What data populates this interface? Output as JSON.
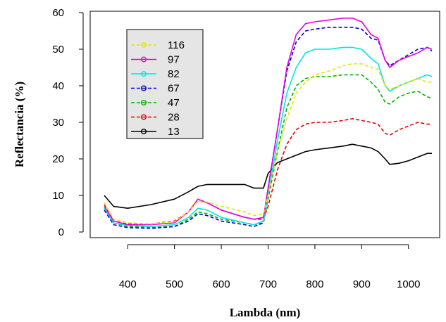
{
  "chart_data": {
    "type": "line",
    "title": "",
    "xlabel": "Lambda (nm)",
    "ylabel": "Reflectancia (%)",
    "xlim": [
      350,
      1050
    ],
    "ylim": [
      0,
      60
    ],
    "xticks": [
      400,
      500,
      600,
      700,
      800,
      900,
      1000
    ],
    "yticks": [
      0,
      10,
      20,
      30,
      40,
      50,
      60
    ],
    "grid": false,
    "legend_position": "top-left",
    "x": [
      350,
      370,
      400,
      450,
      500,
      530,
      550,
      570,
      600,
      650,
      670,
      690,
      700,
      720,
      740,
      760,
      780,
      800,
      830,
      860,
      880,
      900,
      920,
      935,
      950,
      960,
      980,
      1000,
      1020,
      1040,
      1050
    ],
    "series": [
      {
        "name": "116",
        "color": "#e6e600",
        "dash": "5,3",
        "values": [
          8.0,
          3.5,
          2.5,
          2.2,
          2.8,
          5.5,
          8.5,
          8.2,
          7.0,
          5.5,
          4.5,
          5.0,
          10.0,
          22.0,
          31.0,
          38.0,
          41.0,
          43.0,
          44.0,
          45.5,
          46.0,
          46.0,
          45.0,
          44.5,
          40.0,
          39.0,
          40.0,
          41.0,
          42.0,
          41.0,
          41.0
        ]
      },
      {
        "name": "97",
        "color": "#e600e6",
        "dash": "none",
        "values": [
          7.0,
          3.0,
          2.0,
          2.0,
          2.5,
          5.5,
          9.0,
          8.0,
          6.0,
          4.0,
          3.5,
          4.0,
          12.0,
          28.0,
          45.0,
          54.0,
          57.0,
          57.5,
          58.0,
          58.5,
          58.5,
          57.5,
          54.0,
          53.0,
          47.0,
          45.0,
          47.0,
          48.0,
          49.0,
          50.5,
          50.0
        ]
      },
      {
        "name": "82",
        "color": "#00e6e6",
        "dash": "none",
        "values": [
          6.5,
          2.5,
          1.8,
          1.5,
          2.0,
          4.0,
          6.5,
          6.0,
          4.0,
          2.5,
          2.0,
          3.0,
          10.0,
          25.0,
          38.0,
          45.0,
          49.0,
          50.0,
          50.0,
          50.5,
          50.5,
          50.0,
          47.5,
          46.0,
          40.0,
          38.5,
          40.0,
          41.0,
          42.0,
          43.0,
          42.5
        ]
      },
      {
        "name": "67",
        "color": "#0000cc",
        "dash": "5,3",
        "values": [
          6.0,
          2.0,
          1.2,
          1.0,
          1.5,
          3.0,
          5.0,
          4.5,
          3.0,
          2.0,
          1.5,
          2.5,
          12.0,
          28.0,
          44.0,
          52.0,
          55.0,
          55.5,
          56.0,
          56.0,
          56.0,
          55.5,
          53.0,
          52.5,
          47.0,
          45.5,
          47.0,
          48.5,
          50.0,
          50.5,
          49.5
        ]
      },
      {
        "name": "47",
        "color": "#00b300",
        "dash": "5,3",
        "values": [
          6.5,
          2.5,
          1.5,
          1.2,
          1.5,
          3.5,
          5.5,
          5.0,
          3.5,
          2.5,
          2.0,
          2.5,
          9.0,
          22.0,
          34.0,
          40.0,
          42.0,
          42.5,
          42.5,
          43.0,
          43.0,
          43.0,
          41.0,
          39.0,
          35.5,
          35.0,
          37.0,
          38.0,
          38.5,
          37.0,
          36.5
        ]
      },
      {
        "name": "28",
        "color": "#e60000",
        "dash": "5,3",
        "values": [
          7.5,
          3.0,
          2.2,
          2.2,
          3.0,
          5.5,
          8.5,
          8.0,
          6.0,
          4.0,
          3.5,
          3.5,
          7.0,
          17.0,
          24.0,
          28.0,
          29.5,
          30.0,
          30.0,
          30.5,
          31.0,
          30.5,
          30.0,
          29.5,
          27.0,
          26.5,
          28.0,
          29.0,
          30.0,
          29.5,
          29.5
        ]
      },
      {
        "name": "13",
        "color": "#000000",
        "dash": "none",
        "values": [
          10.0,
          7.0,
          6.5,
          7.5,
          9.0,
          11.0,
          12.5,
          13.0,
          13.0,
          13.0,
          12.0,
          12.0,
          16.0,
          19.0,
          20.0,
          21.0,
          22.0,
          22.5,
          23.0,
          23.5,
          24.0,
          23.5,
          23.0,
          22.0,
          20.0,
          18.5,
          18.8,
          19.5,
          20.5,
          21.5,
          21.5
        ]
      }
    ]
  }
}
